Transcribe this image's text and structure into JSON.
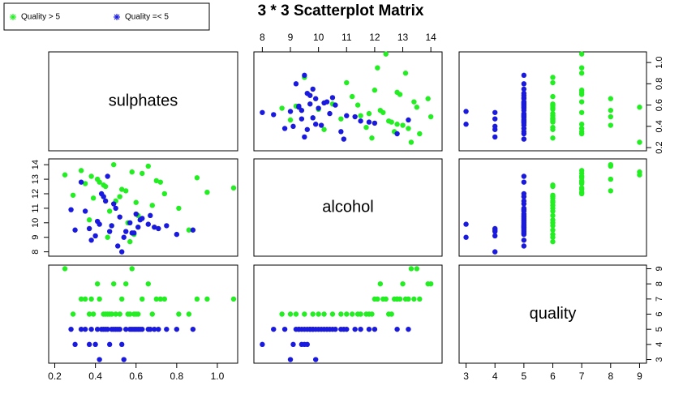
{
  "chart_data": {
    "type": "scatter-matrix",
    "title": "3 * 3 Scatterplot Matrix",
    "variables": [
      {
        "name": "sulphates",
        "lim": [
          0.17,
          1.1
        ],
        "ticks": [
          0.2,
          0.4,
          0.6,
          0.8,
          {
            "value": 1,
            "label": "1.0"
          }
        ]
      },
      {
        "name": "alcohol",
        "lim": [
          7.7,
          14.4
        ],
        "ticks": [
          8,
          9,
          10,
          11,
          12,
          13,
          14
        ]
      },
      {
        "name": "quality",
        "lim": [
          2.76,
          9.24
        ],
        "ticks": [
          3,
          4,
          5,
          6,
          7,
          8,
          9
        ]
      }
    ],
    "series": [
      {
        "name": "Quality > 5",
        "color": "#22ee22",
        "sulphates": [
          0.45,
          0.52,
          0.38,
          0.61,
          0.7,
          0.48,
          0.55,
          0.33,
          0.81,
          0.42,
          0.59,
          0.66,
          0.5,
          0.37,
          0.74,
          0.9,
          0.44,
          0.57,
          0.29,
          0.63,
          0.47,
          0.53,
          0.86,
          0.41,
          0.68,
          0.35,
          0.56,
          0.95,
          0.49,
          0.6,
          0.25,
          1.08,
          0.46,
          0.72,
          0.39,
          0.58
        ],
        "alcohol": [
          12.5,
          11.8,
          13.2,
          10.5,
          12.9,
          9.8,
          12.2,
          13.6,
          11.0,
          12.8,
          9.2,
          13.9,
          11.5,
          10.2,
          12.0,
          13.1,
          12.6,
          8.7,
          11.9,
          13.4,
          10.8,
          12.3,
          9.5,
          13.0,
          11.2,
          12.7,
          10.0,
          12.1,
          14.0,
          11.4,
          13.3,
          12.4,
          9.0,
          12.8,
          11.7,
          13.5
        ],
        "quality": [
          6,
          6,
          7,
          6,
          7,
          6,
          8,
          7,
          6,
          7,
          6,
          8,
          6,
          6,
          7,
          7,
          6,
          6,
          6,
          7,
          6,
          7,
          6,
          8,
          6,
          7,
          6,
          7,
          8,
          6,
          9,
          7,
          6,
          7,
          6,
          9
        ]
      },
      {
        "name": "Quality =< 5",
        "color": "#1a1adf",
        "sulphates": [
          0.55,
          0.48,
          0.62,
          0.4,
          0.71,
          0.35,
          0.58,
          0.45,
          0.66,
          0.52,
          0.3,
          0.8,
          0.43,
          0.57,
          0.38,
          0.69,
          0.5,
          0.47,
          0.6,
          0.33,
          0.75,
          0.41,
          0.54,
          0.88,
          0.44,
          0.63,
          0.37,
          0.51,
          0.28,
          0.59,
          0.46,
          0.67,
          0.42,
          0.53,
          0.49,
          0.61
        ],
        "alcohol": [
          9.4,
          9.8,
          10.2,
          9.1,
          9.6,
          10.8,
          9.3,
          11.5,
          9.9,
          10.4,
          9.5,
          9.2,
          12.0,
          10.0,
          8.8,
          9.7,
          11.0,
          9.4,
          10.6,
          12.8,
          9.8,
          10.1,
          9.0,
          9.5,
          11.8,
          10.3,
          9.6,
          8.4,
          10.9,
          9.3,
          13.2,
          10.5,
          9.9,
          8.0,
          11.3,
          9.7
        ],
        "quality": [
          5,
          5,
          5,
          4,
          5,
          5,
          5,
          5,
          5,
          5,
          4,
          5,
          5,
          5,
          5,
          5,
          5,
          4,
          5,
          5,
          5,
          5,
          3,
          5,
          5,
          5,
          4,
          5,
          5,
          5,
          5,
          5,
          3,
          4,
          5,
          5
        ]
      }
    ]
  }
}
